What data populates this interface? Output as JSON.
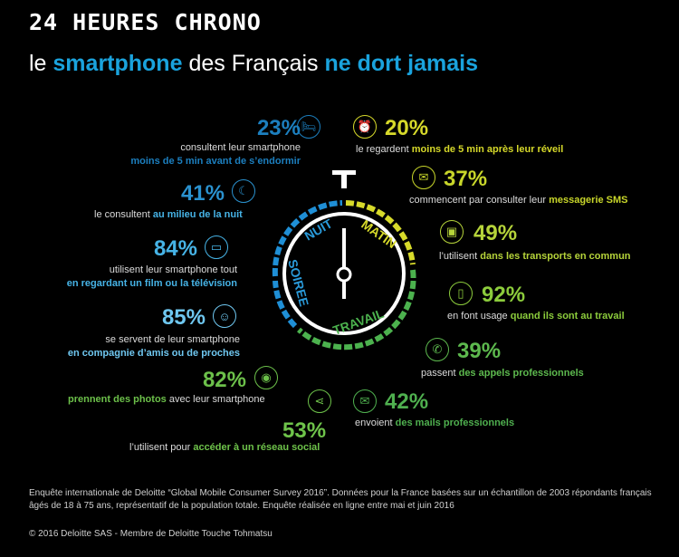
{
  "header": {
    "title": "24 HEURES CHRONO",
    "subtitle_pre": "le ",
    "subtitle_hl1": "smartphone",
    "subtitle_mid": " des Français ",
    "subtitle_hl2": "ne dort jamais"
  },
  "clock": {
    "labels": {
      "nuit": "NUIT",
      "matin": "MATIN",
      "soiree": "SOIREE",
      "travail": "TRAVAIL"
    },
    "colors": {
      "blue": "#1f8fd6",
      "yellow": "#d7da2a",
      "green": "#4cb24e"
    }
  },
  "left": [
    {
      "pct": "23%",
      "icon": "bed-icon",
      "l1": "consultent leur smartphone",
      "l2": "moins de 5 min avant de s’endormir"
    },
    {
      "pct": "41%",
      "icon": "moon-icon",
      "l1": "le consultent ",
      "l2": "au milieu de la nuit"
    },
    {
      "pct": "84%",
      "icon": "tv-icon",
      "l1": "utilisent leur smartphone tout",
      "l2": "en regardant un film ou la télévision"
    },
    {
      "pct": "85%",
      "icon": "people-icon",
      "l1": "se servent de leur smartphone",
      "l2": "en compagnie d’amis ou de proches"
    },
    {
      "pct": "82%",
      "icon": "camera-icon",
      "l1b": "prennent des photos",
      "l1": " avec leur smartphone"
    },
    {
      "pct": "53%",
      "icon": "share-icon",
      "l1": "l’utilisent pour ",
      "l2": "accéder à un réseau social"
    }
  ],
  "right": [
    {
      "pct": "20%",
      "icon": "alarm-icon",
      "l1": "le regardent ",
      "l2": "moins de 5 min après leur réveil"
    },
    {
      "pct": "37%",
      "icon": "sms-icon",
      "l1": "commencent par consulter leur ",
      "l2": "messagerie SMS"
    },
    {
      "pct": "49%",
      "icon": "bus-icon",
      "l1": "l’utilisent  ",
      "l2": "dans les transports en commun"
    },
    {
      "pct": "92%",
      "icon": "phone-icon",
      "l1": "en font usage ",
      "l2": "quand ils sont au travail"
    },
    {
      "pct": "39%",
      "icon": "call-icon",
      "l1": "passent ",
      "l2": "des appels professionnels"
    },
    {
      "pct": "42%",
      "icon": "mail-icon",
      "l1": "envoient ",
      "l2": "des mails professionnels"
    }
  ],
  "footer": {
    "line1": "Enquête internationale de Deloitte “Global Mobile Consumer Survey 2016”. Données pour la France basées sur un échantillon de 2003 répondants français",
    "line2": "âgés de 18 à 75 ans, représentatif de la population totale. Enquête réalisée en ligne entre mai et juin 2016",
    "copyright": "© 2016 Deloitte SAS - Membre de Deloitte Touche Tohmatsu"
  }
}
